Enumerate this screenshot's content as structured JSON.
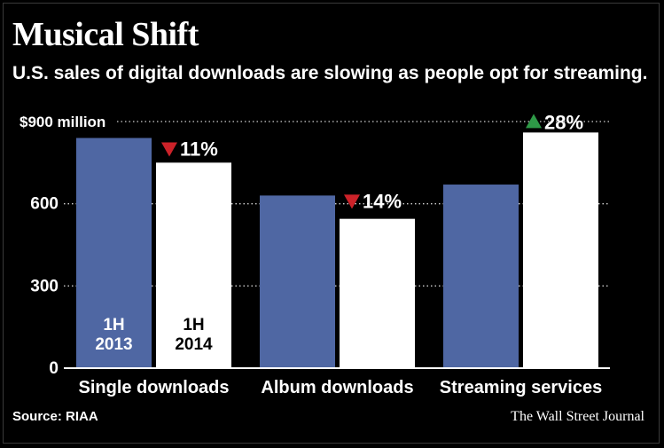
{
  "chart": {
    "title": "Musical Shift",
    "subtitle": "U.S. sales of digital downloads are slowing as people opt for streaming.",
    "source": "Source: RIAA",
    "publisher": "The Wall Street Journal"
  },
  "colors": {
    "background": "#000000",
    "series_2013": "#4f67a3",
    "series_2014": "#ffffff",
    "down_arrow": "#cc2229",
    "up_arrow": "#2e9a47"
  },
  "chart_data": {
    "type": "bar",
    "categories": [
      "Single downloads",
      "Album downloads",
      "Streaming services"
    ],
    "series": [
      {
        "name": "1H 2013",
        "values": [
          840,
          630,
          670
        ]
      },
      {
        "name": "1H 2014",
        "values": [
          750,
          545,
          860
        ]
      }
    ],
    "changes": [
      {
        "text": "11%",
        "direction": "down"
      },
      {
        "text": "14%",
        "direction": "down"
      },
      {
        "text": "28%",
        "direction": "up"
      }
    ],
    "y_ticks": [
      {
        "value": 0,
        "label": "0"
      },
      {
        "value": 300,
        "label": "300"
      },
      {
        "value": 600,
        "label": "600"
      },
      {
        "value": 900,
        "label": "$900 million"
      }
    ],
    "ylim": [
      0,
      900
    ],
    "grid": "dotted horizontal",
    "legend": "inside first category bars",
    "series_labels": [
      {
        "line1": "1H",
        "line2": "2013"
      },
      {
        "line1": "1H",
        "line2": "2014"
      }
    ]
  }
}
